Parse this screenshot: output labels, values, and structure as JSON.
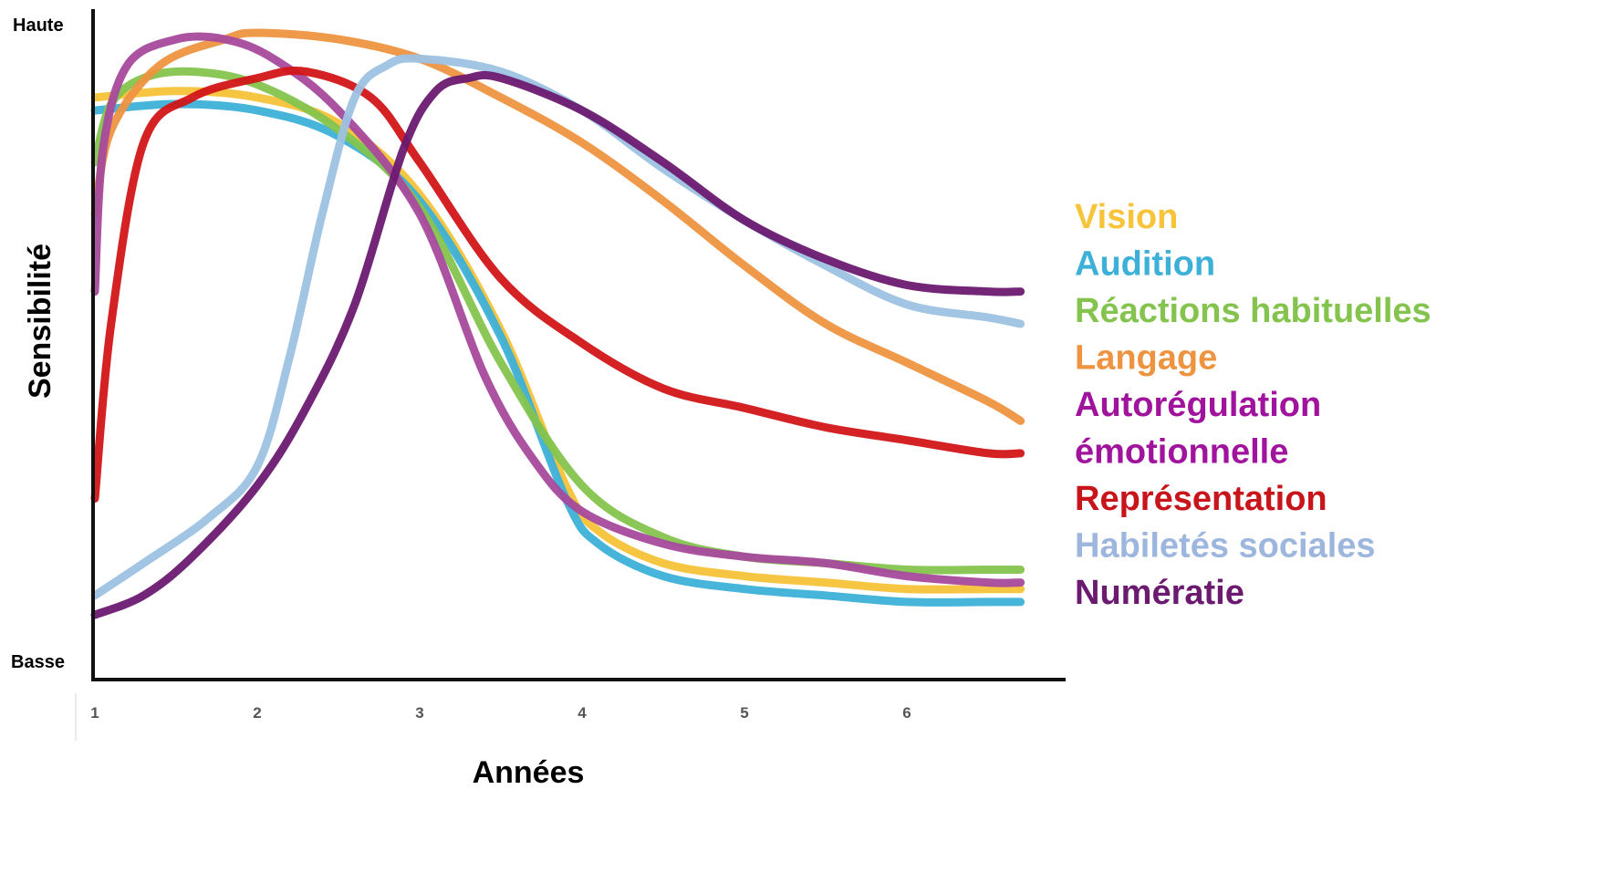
{
  "chart_data": {
    "type": "line",
    "title": "",
    "xlabel": "Années",
    "ylabel": "Sensibilité",
    "y_top_label": "Haute",
    "y_bottom_label": "Basse",
    "xlim": [
      1,
      7
    ],
    "ylim": [
      0,
      1
    ],
    "x_ticks": [
      1,
      2,
      3,
      4,
      5,
      6
    ],
    "x_tick_labels": [
      "1",
      "2",
      "3",
      "4",
      "5",
      "6"
    ],
    "grid": false,
    "legend_position": "right",
    "series": [
      {
        "name": "Vision",
        "color": "#F6C339",
        "x": [
          1.0,
          1.5,
          2.0,
          2.5,
          3.0,
          3.5,
          3.9,
          4.1,
          4.5,
          5.0,
          5.5,
          6.0,
          6.5,
          6.7
        ],
        "y": [
          0.9,
          0.91,
          0.9,
          0.86,
          0.75,
          0.54,
          0.3,
          0.23,
          0.18,
          0.16,
          0.15,
          0.14,
          0.14,
          0.14
        ]
      },
      {
        "name": "Audition",
        "color": "#3DB0D8",
        "x": [
          1.0,
          1.5,
          2.0,
          2.5,
          3.0,
          3.5,
          3.9,
          4.1,
          4.5,
          5.0,
          5.5,
          6.0,
          6.5,
          6.7
        ],
        "y": [
          0.88,
          0.89,
          0.88,
          0.84,
          0.74,
          0.53,
          0.28,
          0.21,
          0.16,
          0.14,
          0.13,
          0.12,
          0.12,
          0.12
        ]
      },
      {
        "name": "Réactions habituelles",
        "color": "#84C44E",
        "x": [
          1.0,
          1.1,
          1.3,
          1.6,
          2.0,
          2.5,
          3.0,
          3.5,
          4.0,
          4.5,
          5.0,
          5.5,
          6.0,
          6.5,
          6.7
        ],
        "y": [
          0.8,
          0.89,
          0.93,
          0.94,
          0.92,
          0.85,
          0.73,
          0.49,
          0.3,
          0.22,
          0.19,
          0.18,
          0.17,
          0.17,
          0.17
        ]
      },
      {
        "name": "Langage",
        "color": "#EE9440",
        "x": [
          1.0,
          1.1,
          1.4,
          1.8,
          2.0,
          2.5,
          3.0,
          3.5,
          4.0,
          4.5,
          5.0,
          5.5,
          6.0,
          6.5,
          6.7
        ],
        "y": [
          0.72,
          0.85,
          0.95,
          0.99,
          1.0,
          0.99,
          0.96,
          0.9,
          0.83,
          0.74,
          0.64,
          0.55,
          0.49,
          0.43,
          0.4
        ]
      },
      {
        "name": "Autorégulation émotionnelle",
        "color": "#A64A9C",
        "x": [
          1.0,
          1.05,
          1.2,
          1.5,
          1.8,
          2.1,
          2.5,
          3.0,
          3.4,
          3.7,
          4.0,
          4.5,
          5.0,
          5.5,
          6.0,
          6.5,
          6.7
        ],
        "y": [
          0.6,
          0.82,
          0.95,
          0.99,
          0.99,
          0.96,
          0.88,
          0.72,
          0.47,
          0.34,
          0.26,
          0.21,
          0.19,
          0.18,
          0.16,
          0.15,
          0.15
        ]
      },
      {
        "name": "Représentation",
        "color": "#D21518",
        "x": [
          1.0,
          1.1,
          1.3,
          1.6,
          2.0,
          2.3,
          2.7,
          3.0,
          3.5,
          4.0,
          4.5,
          5.0,
          5.5,
          6.0,
          6.5,
          6.7
        ],
        "y": [
          0.28,
          0.55,
          0.83,
          0.9,
          0.93,
          0.94,
          0.9,
          0.8,
          0.62,
          0.52,
          0.45,
          0.42,
          0.39,
          0.37,
          0.35,
          0.35
        ]
      },
      {
        "name": "Habiletés sociales",
        "color": "#9DC2E3",
        "x": [
          1.0,
          1.3,
          1.7,
          2.0,
          2.2,
          2.4,
          2.6,
          2.8,
          3.0,
          3.5,
          4.0,
          4.5,
          5.0,
          5.5,
          6.0,
          6.5,
          6.7
        ],
        "y": [
          0.13,
          0.18,
          0.25,
          0.33,
          0.5,
          0.72,
          0.9,
          0.95,
          0.96,
          0.94,
          0.88,
          0.79,
          0.71,
          0.64,
          0.58,
          0.56,
          0.55
        ]
      },
      {
        "name": "Numératie",
        "color": "#6B1A70",
        "x": [
          1.0,
          1.3,
          1.6,
          2.0,
          2.3,
          2.6,
          2.9,
          3.1,
          3.3,
          3.5,
          4.0,
          4.5,
          5.0,
          5.5,
          6.0,
          6.5,
          6.7
        ],
        "y": [
          0.1,
          0.13,
          0.19,
          0.3,
          0.42,
          0.58,
          0.82,
          0.91,
          0.93,
          0.93,
          0.88,
          0.8,
          0.71,
          0.65,
          0.61,
          0.6,
          0.6
        ]
      }
    ],
    "legend_lines": [
      {
        "text": "Vision",
        "color": "#F6C339"
      },
      {
        "text": "Audition",
        "color": "#3DB0D8"
      },
      {
        "text": "Réactions habituelles",
        "color": "#84C44E"
      },
      {
        "text": "Langage",
        "color": "#EE9440"
      },
      {
        "text": "Autorégulation",
        "color": "#A0139C"
      },
      {
        "text": "émotionnelle",
        "color": "#A0139C"
      },
      {
        "text": "Représentation",
        "color": "#C8141B"
      },
      {
        "text": "Habiletés sociales",
        "color": "#9DB6DE"
      },
      {
        "text": "Numératie",
        "color": "#6B1A70"
      }
    ]
  }
}
